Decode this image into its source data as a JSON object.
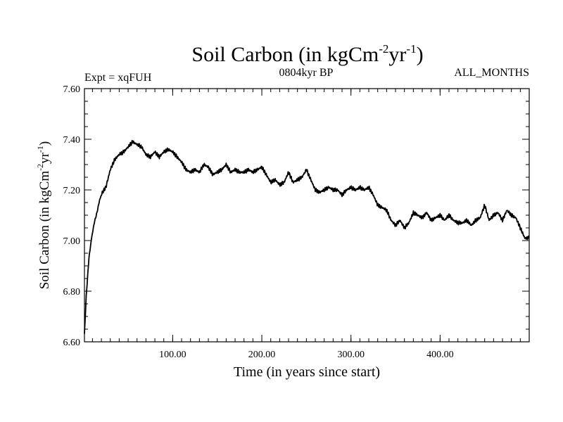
{
  "chart_data": {
    "type": "line",
    "title": {
      "main": "Soil Carbon (in kgCm",
      "exp1": "-2",
      "mid": "yr",
      "exp2": "-1",
      "end": ")"
    },
    "subtitle_left": "Expt = xqFUH",
    "subtitle_center": "0804kyr BP",
    "subtitle_right": "ALL_MONTHS",
    "xlabel": "Time (in years since start)",
    "ylabel": {
      "main": "Soil Carbon (in kgCm",
      "exp1": "-2",
      "mid": "yr",
      "exp2": "-1",
      "end": ")"
    },
    "xlim": [
      1,
      500
    ],
    "ylim": [
      6.6,
      7.6
    ],
    "xticks": [
      100,
      200,
      300,
      400
    ],
    "xtick_labels": [
      "100.00",
      "200.00",
      "300.00",
      "400.00"
    ],
    "yticks": [
      6.6,
      6.8,
      7.0,
      7.2,
      7.4,
      7.6
    ],
    "ytick_labels": [
      "6.60",
      "6.80",
      "7.00",
      "7.20",
      "7.40",
      "7.60"
    ],
    "x_minor_step": 10,
    "y_minor_step": 0.05,
    "grid": false,
    "series": [
      {
        "name": "Soil Carbon",
        "color": "#000000",
        "x": [
          1,
          3,
          6,
          9,
          12,
          15,
          18,
          21,
          25,
          30,
          35,
          40,
          45,
          50,
          55,
          60,
          65,
          70,
          75,
          80,
          85,
          90,
          95,
          100,
          105,
          110,
          115,
          120,
          125,
          130,
          135,
          140,
          145,
          150,
          155,
          160,
          165,
          170,
          175,
          180,
          185,
          190,
          195,
          200,
          205,
          210,
          215,
          220,
          225,
          230,
          235,
          240,
          245,
          250,
          255,
          260,
          265,
          270,
          275,
          280,
          285,
          290,
          295,
          300,
          305,
          310,
          315,
          320,
          325,
          330,
          335,
          340,
          345,
          350,
          355,
          360,
          365,
          370,
          375,
          380,
          385,
          390,
          395,
          400,
          405,
          410,
          415,
          420,
          425,
          430,
          435,
          440,
          445,
          450,
          455,
          460,
          465,
          470,
          475,
          480,
          485,
          490,
          495,
          500
        ],
        "values": [
          6.63,
          6.78,
          6.93,
          7.01,
          7.07,
          7.11,
          7.16,
          7.19,
          7.21,
          7.28,
          7.32,
          7.34,
          7.35,
          7.37,
          7.39,
          7.38,
          7.37,
          7.34,
          7.33,
          7.35,
          7.33,
          7.35,
          7.36,
          7.35,
          7.33,
          7.31,
          7.28,
          7.27,
          7.28,
          7.27,
          7.3,
          7.29,
          7.26,
          7.27,
          7.28,
          7.3,
          7.27,
          7.28,
          7.27,
          7.27,
          7.28,
          7.27,
          7.28,
          7.29,
          7.26,
          7.23,
          7.24,
          7.22,
          7.23,
          7.27,
          7.23,
          7.24,
          7.25,
          7.28,
          7.24,
          7.2,
          7.19,
          7.2,
          7.21,
          7.2,
          7.2,
          7.18,
          7.2,
          7.21,
          7.2,
          7.21,
          7.2,
          7.21,
          7.18,
          7.14,
          7.13,
          7.12,
          7.08,
          7.06,
          7.08,
          7.05,
          7.07,
          7.11,
          7.1,
          7.09,
          7.11,
          7.08,
          7.09,
          7.1,
          7.08,
          7.1,
          7.08,
          7.07,
          7.07,
          7.08,
          7.06,
          7.08,
          7.09,
          7.14,
          7.08,
          7.1,
          7.11,
          7.08,
          7.12,
          7.1,
          7.09,
          7.05,
          7.01,
          7.01
        ]
      }
    ]
  }
}
